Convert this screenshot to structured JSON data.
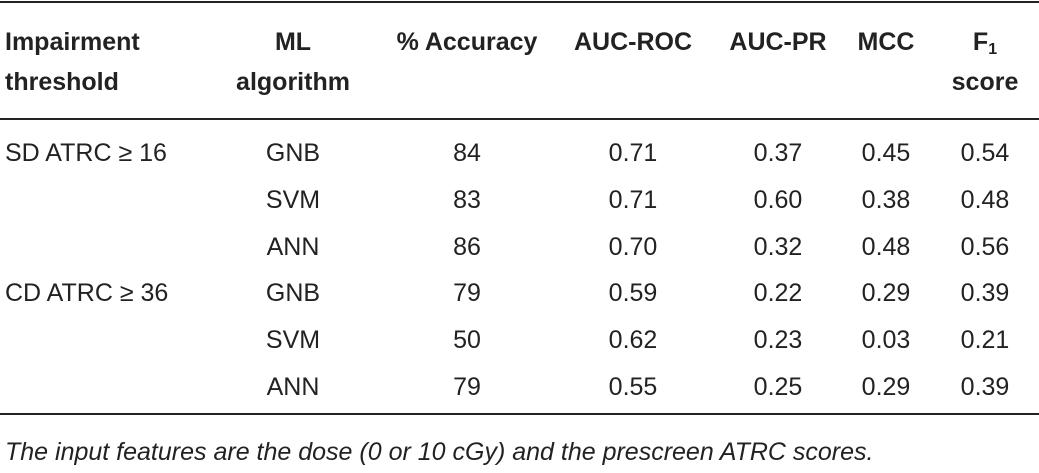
{
  "table": {
    "headers": [
      {
        "line1": "Impairment",
        "line2": "threshold"
      },
      {
        "line1": "ML",
        "line2": "algorithm"
      },
      {
        "line1": "% Accuracy"
      },
      {
        "line1": "AUC-ROC"
      },
      {
        "line1": "AUC-PR"
      },
      {
        "line1": "MCC"
      },
      {
        "line1": "F",
        "sub": "1",
        "line2": "score"
      }
    ],
    "groups": [
      {
        "threshold": "SD ATRC ≥ 16",
        "rows": [
          [
            "GNB",
            "84",
            "0.71",
            "0.37",
            "0.45",
            "0.54"
          ],
          [
            "SVM",
            "83",
            "0.71",
            "0.60",
            "0.38",
            "0.48"
          ],
          [
            "ANN",
            "86",
            "0.70",
            "0.32",
            "0.48",
            "0.56"
          ]
        ]
      },
      {
        "threshold": "CD ATRC ≥ 36",
        "rows": [
          [
            "GNB",
            "79",
            "0.59",
            "0.22",
            "0.29",
            "0.39"
          ],
          [
            "SVM",
            "50",
            "0.62",
            "0.23",
            "0.03",
            "0.21"
          ],
          [
            "ANN",
            "79",
            "0.55",
            "0.25",
            "0.29",
            "0.39"
          ]
        ]
      }
    ],
    "footnote": "The input features are the dose (0 or 10 cGy) and the prescreen ATRC scores."
  }
}
